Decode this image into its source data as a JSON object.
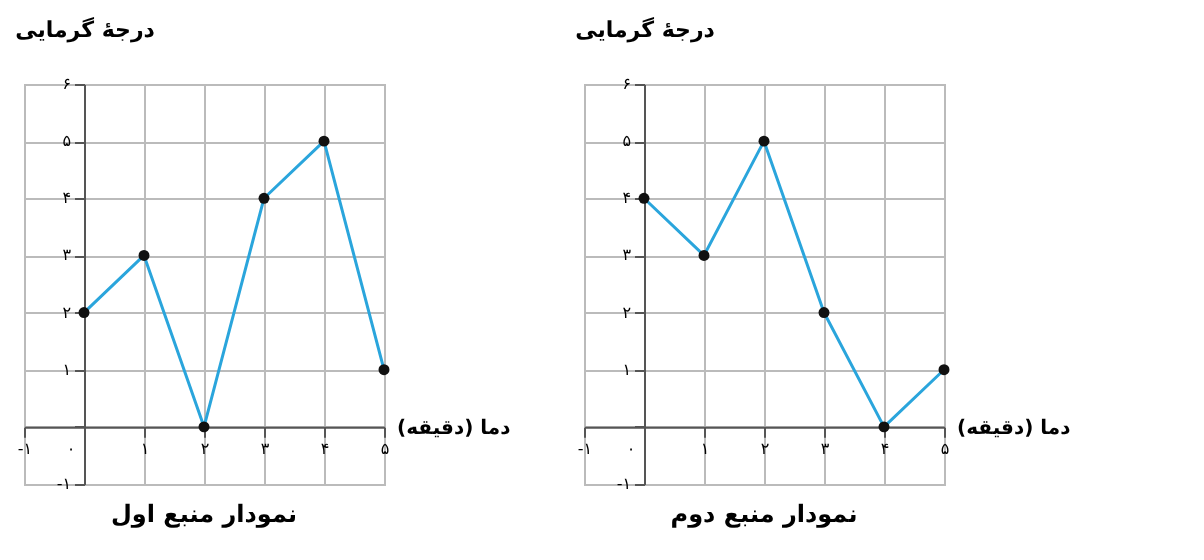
{
  "chart_data": [
    {
      "type": "line",
      "title": "نمودار منبع اول",
      "xlabel": "دما (دقیقه)",
      "ylabel": "درجهٔ گرمایی",
      "x": [
        0,
        1,
        2,
        3,
        4,
        5
      ],
      "series": [
        {
          "color": "#2aa5dc",
          "values": [
            2,
            3,
            0,
            4,
            5,
            1
          ]
        }
      ],
      "xlim": [
        -1,
        5
      ],
      "ylim": [
        -1,
        6
      ],
      "xticks": [
        {
          "value": -1,
          "label": "-۱"
        },
        {
          "value": 0,
          "label": "۰"
        },
        {
          "value": 1,
          "label": "۱"
        },
        {
          "value": 2,
          "label": "۲"
        },
        {
          "value": 3,
          "label": "۳"
        },
        {
          "value": 4,
          "label": "۴"
        },
        {
          "value": 5,
          "label": "۵"
        }
      ],
      "yticks": [
        {
          "value": -1,
          "label": "-۱"
        },
        {
          "value": 0,
          "label": null
        },
        {
          "value": 1,
          "label": "۱"
        },
        {
          "value": 2,
          "label": "۲"
        },
        {
          "value": 3,
          "label": "۳"
        },
        {
          "value": 4,
          "label": "۴"
        },
        {
          "value": 5,
          "label": "۵"
        },
        {
          "value": 6,
          "label": "۶"
        }
      ],
      "grid": true,
      "marker": "circle"
    },
    {
      "type": "line",
      "title": "نمودار منبع دوم",
      "xlabel": "دما (دقیقه)",
      "ylabel": "درجهٔ گرمایی",
      "x": [
        0,
        1,
        2,
        3,
        4,
        5
      ],
      "series": [
        {
          "color": "#2aa5dc",
          "values": [
            4,
            3,
            5,
            2,
            0,
            1
          ]
        }
      ],
      "xlim": [
        -1,
        5
      ],
      "ylim": [
        -1,
        6
      ],
      "xticks": [
        {
          "value": -1,
          "label": "-۱"
        },
        {
          "value": 0,
          "label": "۰"
        },
        {
          "value": 1,
          "label": "۱"
        },
        {
          "value": 2,
          "label": "۲"
        },
        {
          "value": 3,
          "label": "۳"
        },
        {
          "value": 4,
          "label": "۴"
        },
        {
          "value": 5,
          "label": "۵"
        }
      ],
      "yticks": [
        {
          "value": -1,
          "label": "-۱"
        },
        {
          "value": 0,
          "label": null
        },
        {
          "value": 1,
          "label": "۱"
        },
        {
          "value": 2,
          "label": "۲"
        },
        {
          "value": 3,
          "label": "۳"
        },
        {
          "value": 4,
          "label": "۴"
        },
        {
          "value": 5,
          "label": "۵"
        },
        {
          "value": 6,
          "label": "۶"
        }
      ],
      "grid": true,
      "marker": "circle"
    }
  ]
}
